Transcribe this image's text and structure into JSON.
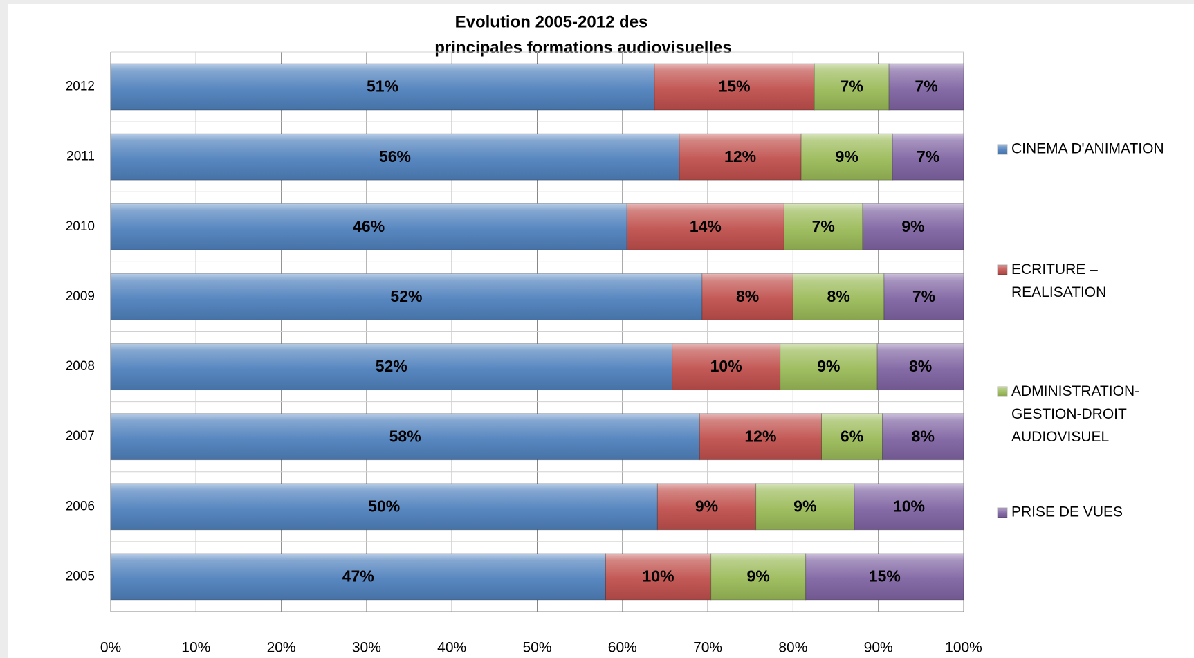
{
  "chart_data": {
    "type": "bar",
    "orientation": "horizontal",
    "stacked": "percent",
    "title": [
      "Evolution 2005-2012 des",
      "principales formations audiovisuelles"
    ],
    "categories": [
      "2005",
      "2006",
      "2007",
      "2008",
      "2009",
      "2010",
      "2011",
      "2012"
    ],
    "series": [
      {
        "name": "CINEMA D'ANIMATION",
        "color": "#4f81bd",
        "values": [
          47,
          50,
          58,
          52,
          52,
          46,
          56,
          51
        ],
        "value_labels": [
          "47%",
          "50%",
          "58%",
          "52%",
          "52%",
          "46%",
          "56%",
          "51%"
        ]
      },
      {
        "name": "ECRITURE – REALISATION",
        "color": "#c0504d",
        "values": [
          10,
          9,
          12,
          10,
          8,
          14,
          12,
          15
        ],
        "value_labels": [
          "10%",
          "9%",
          "12%",
          "10%",
          "8%",
          "14%",
          "12%",
          "15%"
        ]
      },
      {
        "name": "ADMINISTRATION-GESTION-DROIT AUDIOVISUEL",
        "color": "#9bbb59",
        "values": [
          9,
          9,
          6,
          9,
          8,
          7,
          9,
          7
        ],
        "value_labels": [
          "9%",
          "9%",
          "6%",
          "9%",
          "8%",
          "7%",
          "9%",
          "7%"
        ]
      },
      {
        "name": "PRISE DE VUES",
        "color": "#8064a2",
        "values": [
          15,
          10,
          8,
          8,
          7,
          9,
          7,
          7
        ],
        "value_labels": [
          "15%",
          "10%",
          "8%",
          "8%",
          "7%",
          "9%",
          "7%",
          "7%"
        ]
      }
    ],
    "xlim": [
      0,
      100
    ],
    "xticks": [
      {
        "value": 0,
        "label": "0%"
      },
      {
        "value": 10,
        "label": "10%"
      },
      {
        "value": 20,
        "label": "20%"
      },
      {
        "value": 30,
        "label": "30%"
      },
      {
        "value": 40,
        "label": "40%"
      },
      {
        "value": 50,
        "label": "50%"
      },
      {
        "value": 60,
        "label": "60%"
      },
      {
        "value": 70,
        "label": "70%"
      },
      {
        "value": 80,
        "label": "80%"
      },
      {
        "value": 90,
        "label": "90%"
      },
      {
        "value": 100,
        "label": "100%"
      }
    ],
    "grid": true,
    "legend": "right"
  }
}
